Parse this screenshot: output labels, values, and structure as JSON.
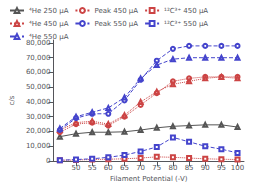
{
  "chart_data": {
    "type": "line",
    "x": [
      45,
      50,
      55,
      60,
      65,
      70,
      75,
      80,
      85,
      90,
      95,
      100
    ],
    "series": [
      {
        "name": "⁴He 250 μA",
        "color": "#555555",
        "marker": "triangle",
        "line_style": "solid",
        "values": [
          16500,
          18500,
          19500,
          19500,
          19800,
          21000,
          22500,
          23500,
          24000,
          24500,
          24500,
          23000
        ]
      },
      {
        "name": "Peak 450 μA",
        "color": "#cc4444",
        "marker": "circle",
        "line_style": "dotted",
        "values": [
          19500,
          25000,
          26000,
          24000,
          30000,
          38000,
          46000,
          54000,
          56000,
          57000,
          57000,
          57000
        ]
      },
      {
        "name": "¹²C³⁺ 450 μA",
        "color": "#cc4444",
        "marker": "square",
        "line_style": "dotted",
        "values": [
          500,
          700,
          1000,
          1200,
          1500,
          2000,
          2800,
          2500,
          2000,
          1500,
          1200,
          1000
        ]
      },
      {
        "name": "⁴He 450 μA",
        "color": "#cc4444",
        "marker": "triangle",
        "line_style": "dotted",
        "values": [
          21000,
          26000,
          27000,
          25000,
          31000,
          40000,
          47000,
          52000,
          54000,
          56000,
          57000,
          56000
        ]
      },
      {
        "name": "Peak 550 μA",
        "color": "#4444cc",
        "marker": "circle",
        "line_style": "dashed",
        "values": [
          21000,
          29000,
          32000,
          32000,
          41000,
          55000,
          68000,
          76000,
          78000,
          78000,
          78000,
          78000
        ]
      },
      {
        "name": "¹²C³⁺ 550 μA",
        "color": "#4444cc",
        "marker": "square",
        "line_style": "dashed",
        "values": [
          500,
          1000,
          1500,
          2500,
          4000,
          6500,
          9500,
          16000,
          13000,
          10000,
          8000,
          5500
        ]
      },
      {
        "name": "⁴He 550 μA",
        "color": "#4444cc",
        "marker": "triangle",
        "line_style": "dashed",
        "values": [
          22000,
          30000,
          33000,
          36000,
          43000,
          56000,
          65000,
          69000,
          70000,
          70000,
          70000,
          70000
        ]
      }
    ],
    "xlabel": "Filament Potential (-V)",
    "ylabel": "c/s",
    "xlim": [
      43,
      102
    ],
    "ylim": [
      0,
      82000
    ],
    "xticks": [
      50,
      55,
      60,
      65,
      70,
      75,
      80,
      85,
      90,
      95,
      100
    ],
    "yticks": [
      0,
      {
        "value": 10000,
        "label": "10,000"
      },
      {
        "value": 20000,
        "label": "20,000"
      },
      {
        "value": 30000,
        "label": "30,000"
      },
      {
        "value": 40000,
        "label": "40,000"
      },
      {
        "value": 50000,
        "label": "50,000"
      },
      {
        "value": 60000,
        "label": "60,000"
      },
      {
        "value": 70000,
        "label": "70,000"
      },
      {
        "value": 80000,
        "label": "80,000"
      }
    ],
    "grid": false,
    "legend": "upper left"
  }
}
